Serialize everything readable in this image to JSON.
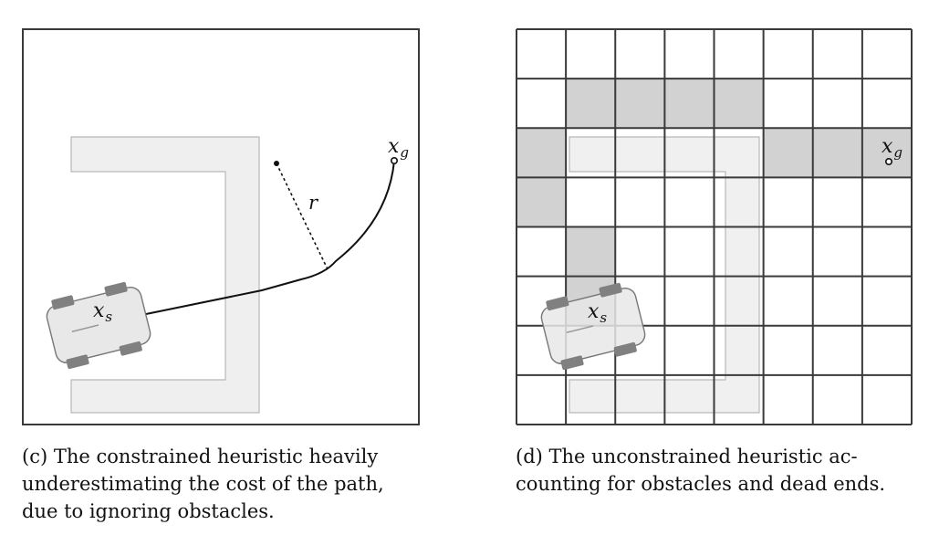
{
  "panel_c": {
    "goal_label": "x",
    "goal_sub": "g",
    "start_label": "x",
    "start_sub": "s",
    "radius_label": "r",
    "caption": {
      "line1": "(c) The constrained heuristic heavily",
      "line2": "underestimating the cost of the path,",
      "line3": "due to ignoring obstacles."
    }
  },
  "panel_d": {
    "goal_label": "x",
    "goal_sub": "g",
    "start_label": "x",
    "start_sub": "s",
    "grid": {
      "rows": 8,
      "cols": 8
    },
    "shaded_cells": [
      [
        1,
        1
      ],
      [
        1,
        2
      ],
      [
        1,
        3
      ],
      [
        1,
        4
      ],
      [
        2,
        0
      ],
      [
        2,
        5
      ],
      [
        2,
        6
      ],
      [
        2,
        7
      ],
      [
        3,
        0
      ],
      [
        4,
        1
      ],
      [
        5,
        1
      ]
    ],
    "caption": {
      "line1": "(d) The unconstrained heuristic ac-",
      "line2": "counting for obstacles and dead ends."
    }
  },
  "colors": {
    "frame": "#3a3a3a",
    "obstacle_fill": "#efefef",
    "obstacle_stroke": "#b8b8b8",
    "shaded_cell": "#d2d2d2",
    "car_body": "#e8e8e8",
    "wheel": "#808080"
  }
}
